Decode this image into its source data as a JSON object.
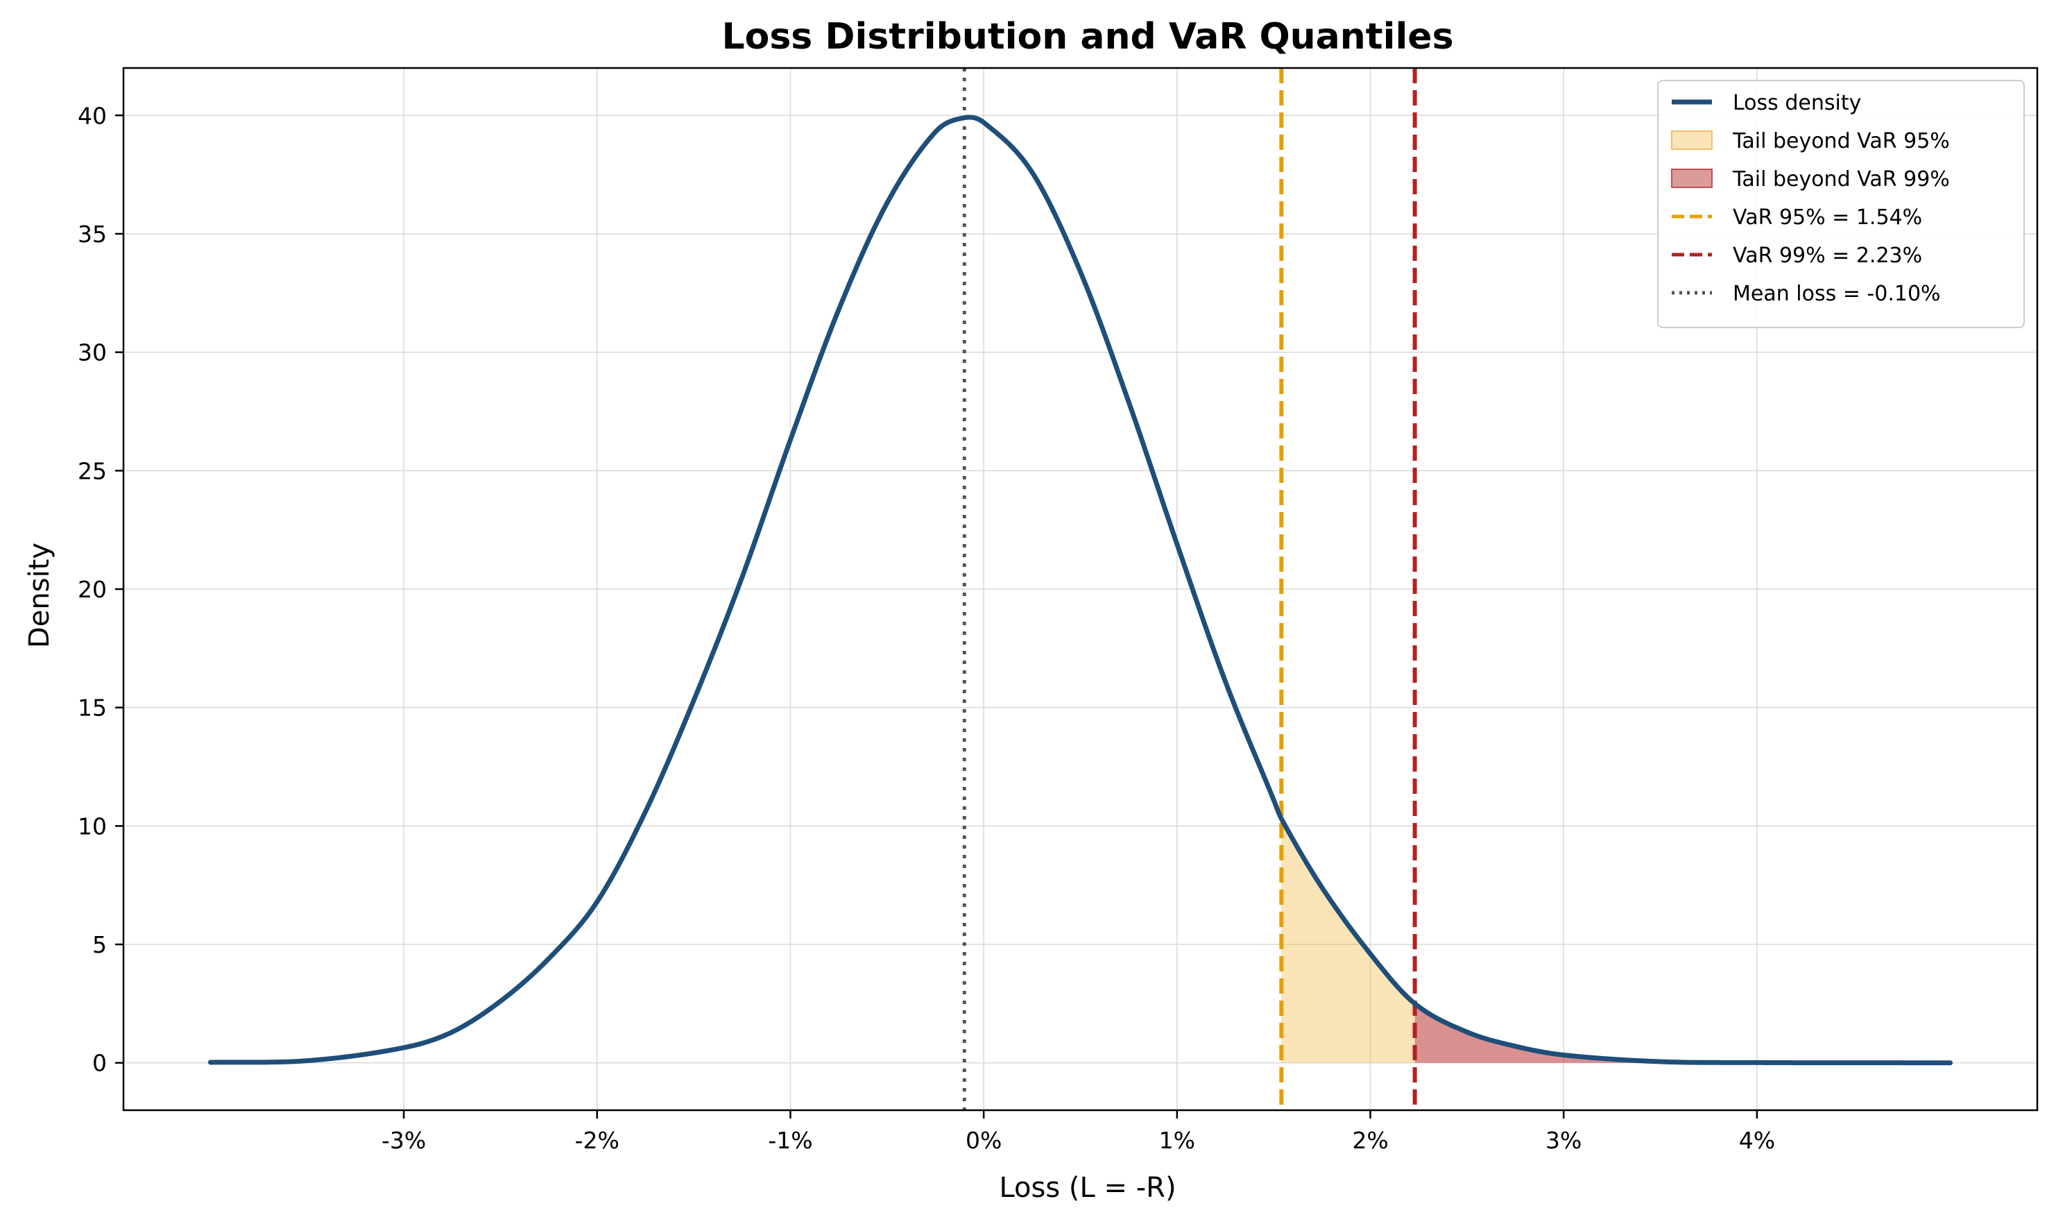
{
  "chart_data": {
    "type": "line",
    "title": "Loss Distribution and VaR Quantiles",
    "xlabel": "Loss (L = -R)",
    "ylabel": "Density",
    "xlim": [
      -4.45,
      5.45
    ],
    "ylim": [
      -2.0,
      42.0
    ],
    "x_ticks": [
      {
        "value": -3,
        "label": "-3%"
      },
      {
        "value": -2,
        "label": "-2%"
      },
      {
        "value": -1,
        "label": "-1%"
      },
      {
        "value": 0,
        "label": "0%"
      },
      {
        "value": 1,
        "label": "1%"
      },
      {
        "value": 2,
        "label": "2%"
      },
      {
        "value": 3,
        "label": "3%"
      },
      {
        "value": 4,
        "label": "4%"
      }
    ],
    "y_ticks": [
      {
        "value": 0,
        "label": "0"
      },
      {
        "value": 5,
        "label": "5"
      },
      {
        "value": 10,
        "label": "10"
      },
      {
        "value": 15,
        "label": "15"
      },
      {
        "value": 20,
        "label": "20"
      },
      {
        "value": 25,
        "label": "25"
      },
      {
        "value": 30,
        "label": "30"
      },
      {
        "value": 35,
        "label": "35"
      },
      {
        "value": 40,
        "label": "40"
      }
    ],
    "grid": true,
    "legend_position": "top-right",
    "series": [
      {
        "name": "Loss density",
        "color": "#1f4e79",
        "x": [
          -4.0,
          -3.5,
          -3.0,
          -2.75,
          -2.5,
          -2.25,
          -2.0,
          -1.75,
          -1.5,
          -1.25,
          -1.0,
          -0.75,
          -0.5,
          -0.25,
          -0.1,
          0.0,
          0.25,
          0.5,
          0.75,
          1.0,
          1.25,
          1.5,
          1.54,
          1.75,
          2.0,
          2.23,
          2.5,
          2.75,
          3.0,
          3.5,
          4.0,
          4.5,
          5.0
        ],
        "y": [
          0.02,
          0.09,
          0.64,
          1.3,
          2.6,
          4.4,
          6.8,
          10.6,
          15.3,
          20.5,
          26.3,
          31.8,
          36.3,
          39.3,
          39.9,
          39.7,
          37.6,
          33.4,
          27.9,
          21.9,
          16.1,
          11.1,
          10.3,
          7.4,
          4.6,
          2.5,
          1.3,
          0.7,
          0.33,
          0.05,
          0.01,
          0.003,
          0.0
        ]
      }
    ],
    "fills": [
      {
        "name": "Tail beyond VaR 95%",
        "from": 1.54,
        "to": 2.23,
        "color": "#f5b942",
        "opacity": 0.38
      },
      {
        "name": "Tail beyond VaR 99%",
        "from": 2.23,
        "to": 5.0,
        "color": "#b22222",
        "opacity": 0.5
      }
    ],
    "vlines": [
      {
        "name": "VaR 95% = 1.54%",
        "x": 1.54,
        "color": "#e69f00",
        "style": "dashed"
      },
      {
        "name": "VaR 99% = 2.23%",
        "x": 2.23,
        "color": "#b22222",
        "style": "dashed"
      },
      {
        "name": "Mean loss = -0.10%",
        "x": -0.1,
        "color": "#555555",
        "style": "dotted"
      }
    ],
    "legend": [
      {
        "label": "Loss density",
        "kind": "line",
        "color": "#1f4e79"
      },
      {
        "label": "Tail beyond VaR 95%",
        "kind": "patch",
        "color": "#f5b942",
        "edge": "#f0c070",
        "opacity": 0.38
      },
      {
        "label": "Tail beyond VaR 99%",
        "kind": "patch",
        "color": "#b22222",
        "edge": "#c05050",
        "opacity": 0.45
      },
      {
        "label": "VaR 95% = 1.54%",
        "kind": "dashed",
        "color": "#e69f00"
      },
      {
        "label": "VaR 99% = 2.23%",
        "kind": "dashed",
        "color": "#b22222"
      },
      {
        "label": "Mean loss = -0.10%",
        "kind": "dotted",
        "color": "#555555"
      }
    ]
  }
}
